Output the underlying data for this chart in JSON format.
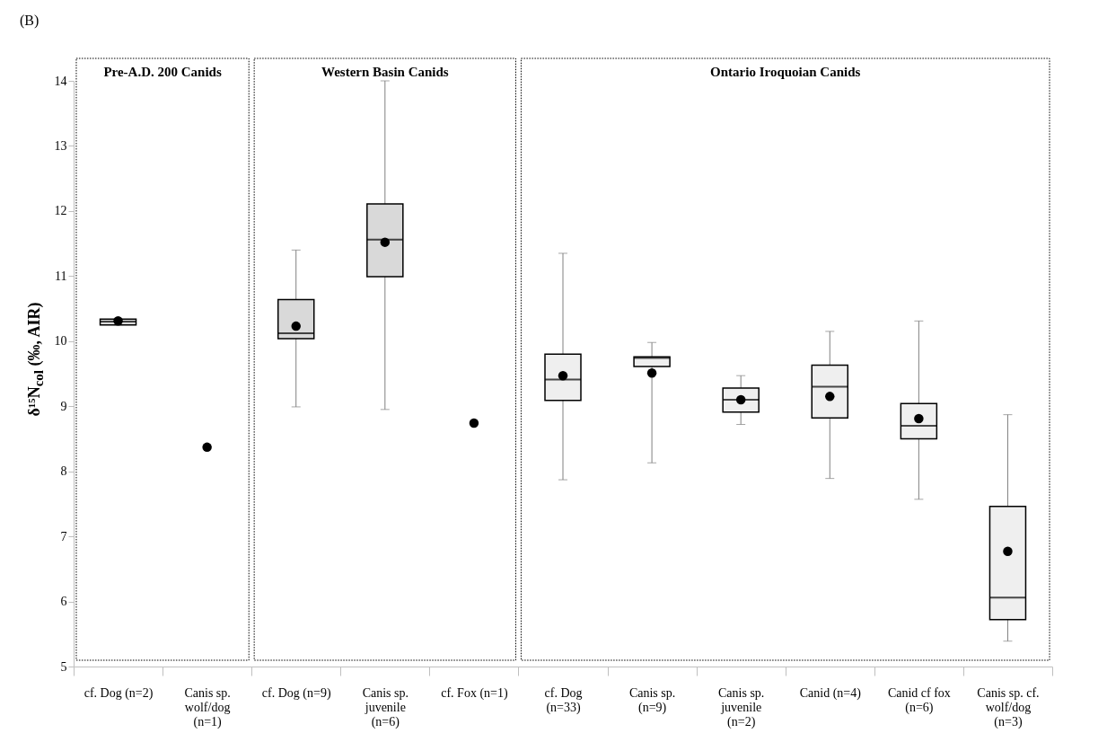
{
  "chart_data": {
    "type": "box",
    "ylabel": "δ¹⁵N$_{col}$ (‰, AIR)",
    "annotations": [
      "(B)"
    ],
    "categories": [
      "cf. Dog (n=2)",
      "Canis sp. wolf/dog (n=1)",
      "cf. Dog (n=9)",
      "Canis sp. juvenile (n=6)",
      "cf. Fox (n=1)",
      "cf. Dog (n=33)",
      "Canis sp. (n=9)",
      "Canis sp. juvenile (n=2)",
      "Canid (n=4)",
      "Canid cf fox (n=6)",
      "Canis sp. cf. wolf/dog (n=3)"
    ],
    "series": [
      {
        "color": "#d9d9d9",
        "boxes": [
          {
            "low": 10.25,
            "q1": 10.25,
            "median": 10.3,
            "q3": 10.34,
            "high": 10.34,
            "mean": 10.31
          },
          null,
          {
            "low": 8.99,
            "q1": 10.04,
            "median": 10.12,
            "q3": 10.64,
            "high": 11.4,
            "mean": 10.23
          },
          {
            "low": 8.95,
            "q1": 10.99,
            "median": 11.56,
            "q3": 12.11,
            "high": 14.0,
            "mean": 11.52
          },
          null,
          null,
          null,
          null,
          null,
          null,
          null
        ]
      },
      {
        "color": "#efefef",
        "boxes": [
          null,
          null,
          null,
          null,
          null,
          {
            "low": 7.87,
            "q1": 9.09,
            "median": 9.41,
            "q3": 9.8,
            "high": 11.35,
            "mean": 9.47
          },
          {
            "low": 8.13,
            "q1": 9.61,
            "median": 9.74,
            "q3": 9.76,
            "high": 9.98,
            "mean": 9.51
          },
          {
            "low": 8.72,
            "q1": 8.91,
            "median": 9.1,
            "q3": 9.28,
            "high": 9.47,
            "mean": 9.1
          },
          {
            "low": 7.89,
            "q1": 8.82,
            "median": 9.3,
            "q3": 9.63,
            "high": 10.15,
            "mean": 9.15
          },
          {
            "low": 7.57,
            "q1": 8.5,
            "median": 8.7,
            "q3": 9.04,
            "high": 10.31,
            "mean": 8.81
          },
          {
            "low": 5.39,
            "q1": 5.72,
            "median": 6.06,
            "q3": 7.46,
            "high": 8.87,
            "mean": 6.77
          }
        ]
      },
      {
        "type": "scatter",
        "color": "#000000",
        "x": [
          "Canis sp. wolf/dog (n=1)",
          "cf. Fox (n=1)"
        ],
        "values": [
          8.37,
          8.74
        ]
      }
    ],
    "bands": [
      {
        "axis": "x",
        "from": "cf. Dog (n=2)",
        "to": "Canis sp. wolf/dog (n=1)",
        "label": "Pre-A.D. 200 Canids",
        "color": "#ffffff"
      },
      {
        "axis": "x",
        "from": "cf. Dog (n=9)",
        "to": "cf. Fox (n=1)",
        "label": "Western Basin Canids",
        "color": "#ffffff"
      },
      {
        "axis": "x",
        "from": "cf. Dog (n=33)",
        "to": "Canis sp. cf. wolf/dog (n=3)",
        "label": "Ontario Iroquoian Canids",
        "color": "#ffffff"
      }
    ],
    "ylim": [
      5,
      14
    ],
    "yticks": [
      5,
      6,
      7,
      8,
      9,
      10,
      11,
      12,
      13,
      14
    ],
    "grid": false,
    "marker": "circle"
  }
}
